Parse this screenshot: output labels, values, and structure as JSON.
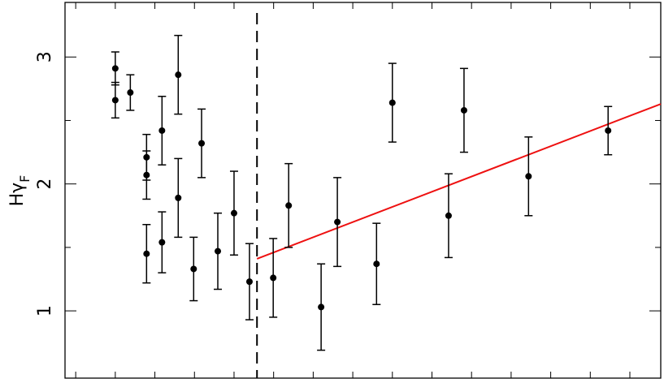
{
  "chart_data": {
    "type": "scatter",
    "ylabel": {
      "text": "Hγ",
      "subscript": "F"
    },
    "xlim": [
      -0.27,
      14.78
    ],
    "ylim": [
      0.47,
      3.43
    ],
    "xticks": [
      0,
      1,
      2,
      3,
      4,
      5,
      6,
      7,
      8,
      9,
      10,
      11,
      12,
      13,
      14
    ],
    "yticks": [
      1,
      2,
      3
    ],
    "yminor": [
      1.5,
      2.5
    ],
    "vline": 4.58,
    "series": [
      {
        "color": "#000000",
        "x": [
          1.0,
          1.0,
          1.38,
          1.79,
          1.79,
          1.79,
          2.18,
          2.18,
          2.59,
          2.59,
          2.98,
          3.18,
          3.59,
          4.0,
          4.39,
          4.99,
          5.38,
          6.2,
          6.61,
          7.6,
          8.0,
          9.42,
          9.81,
          11.44,
          13.45
        ],
        "values": [
          2.91,
          2.66,
          2.72,
          2.21,
          2.07,
          1.45,
          2.42,
          1.54,
          2.86,
          1.89,
          1.33,
          2.32,
          1.47,
          1.77,
          1.23,
          1.26,
          1.83,
          1.03,
          1.7,
          1.37,
          2.64,
          1.75,
          2.58,
          2.06,
          2.42
        ],
        "errors": [
          0.13,
          0.14,
          0.14,
          0.18,
          0.19,
          0.23,
          0.27,
          0.24,
          0.31,
          0.31,
          0.25,
          0.27,
          0.3,
          0.33,
          0.3,
          0.31,
          0.33,
          0.34,
          0.35,
          0.32,
          0.31,
          0.33,
          0.33,
          0.31,
          0.19
        ]
      }
    ],
    "fit": {
      "color": "#ee1111",
      "x": [
        4.58,
        14.78
      ],
      "values": [
        1.41,
        2.63
      ]
    }
  }
}
